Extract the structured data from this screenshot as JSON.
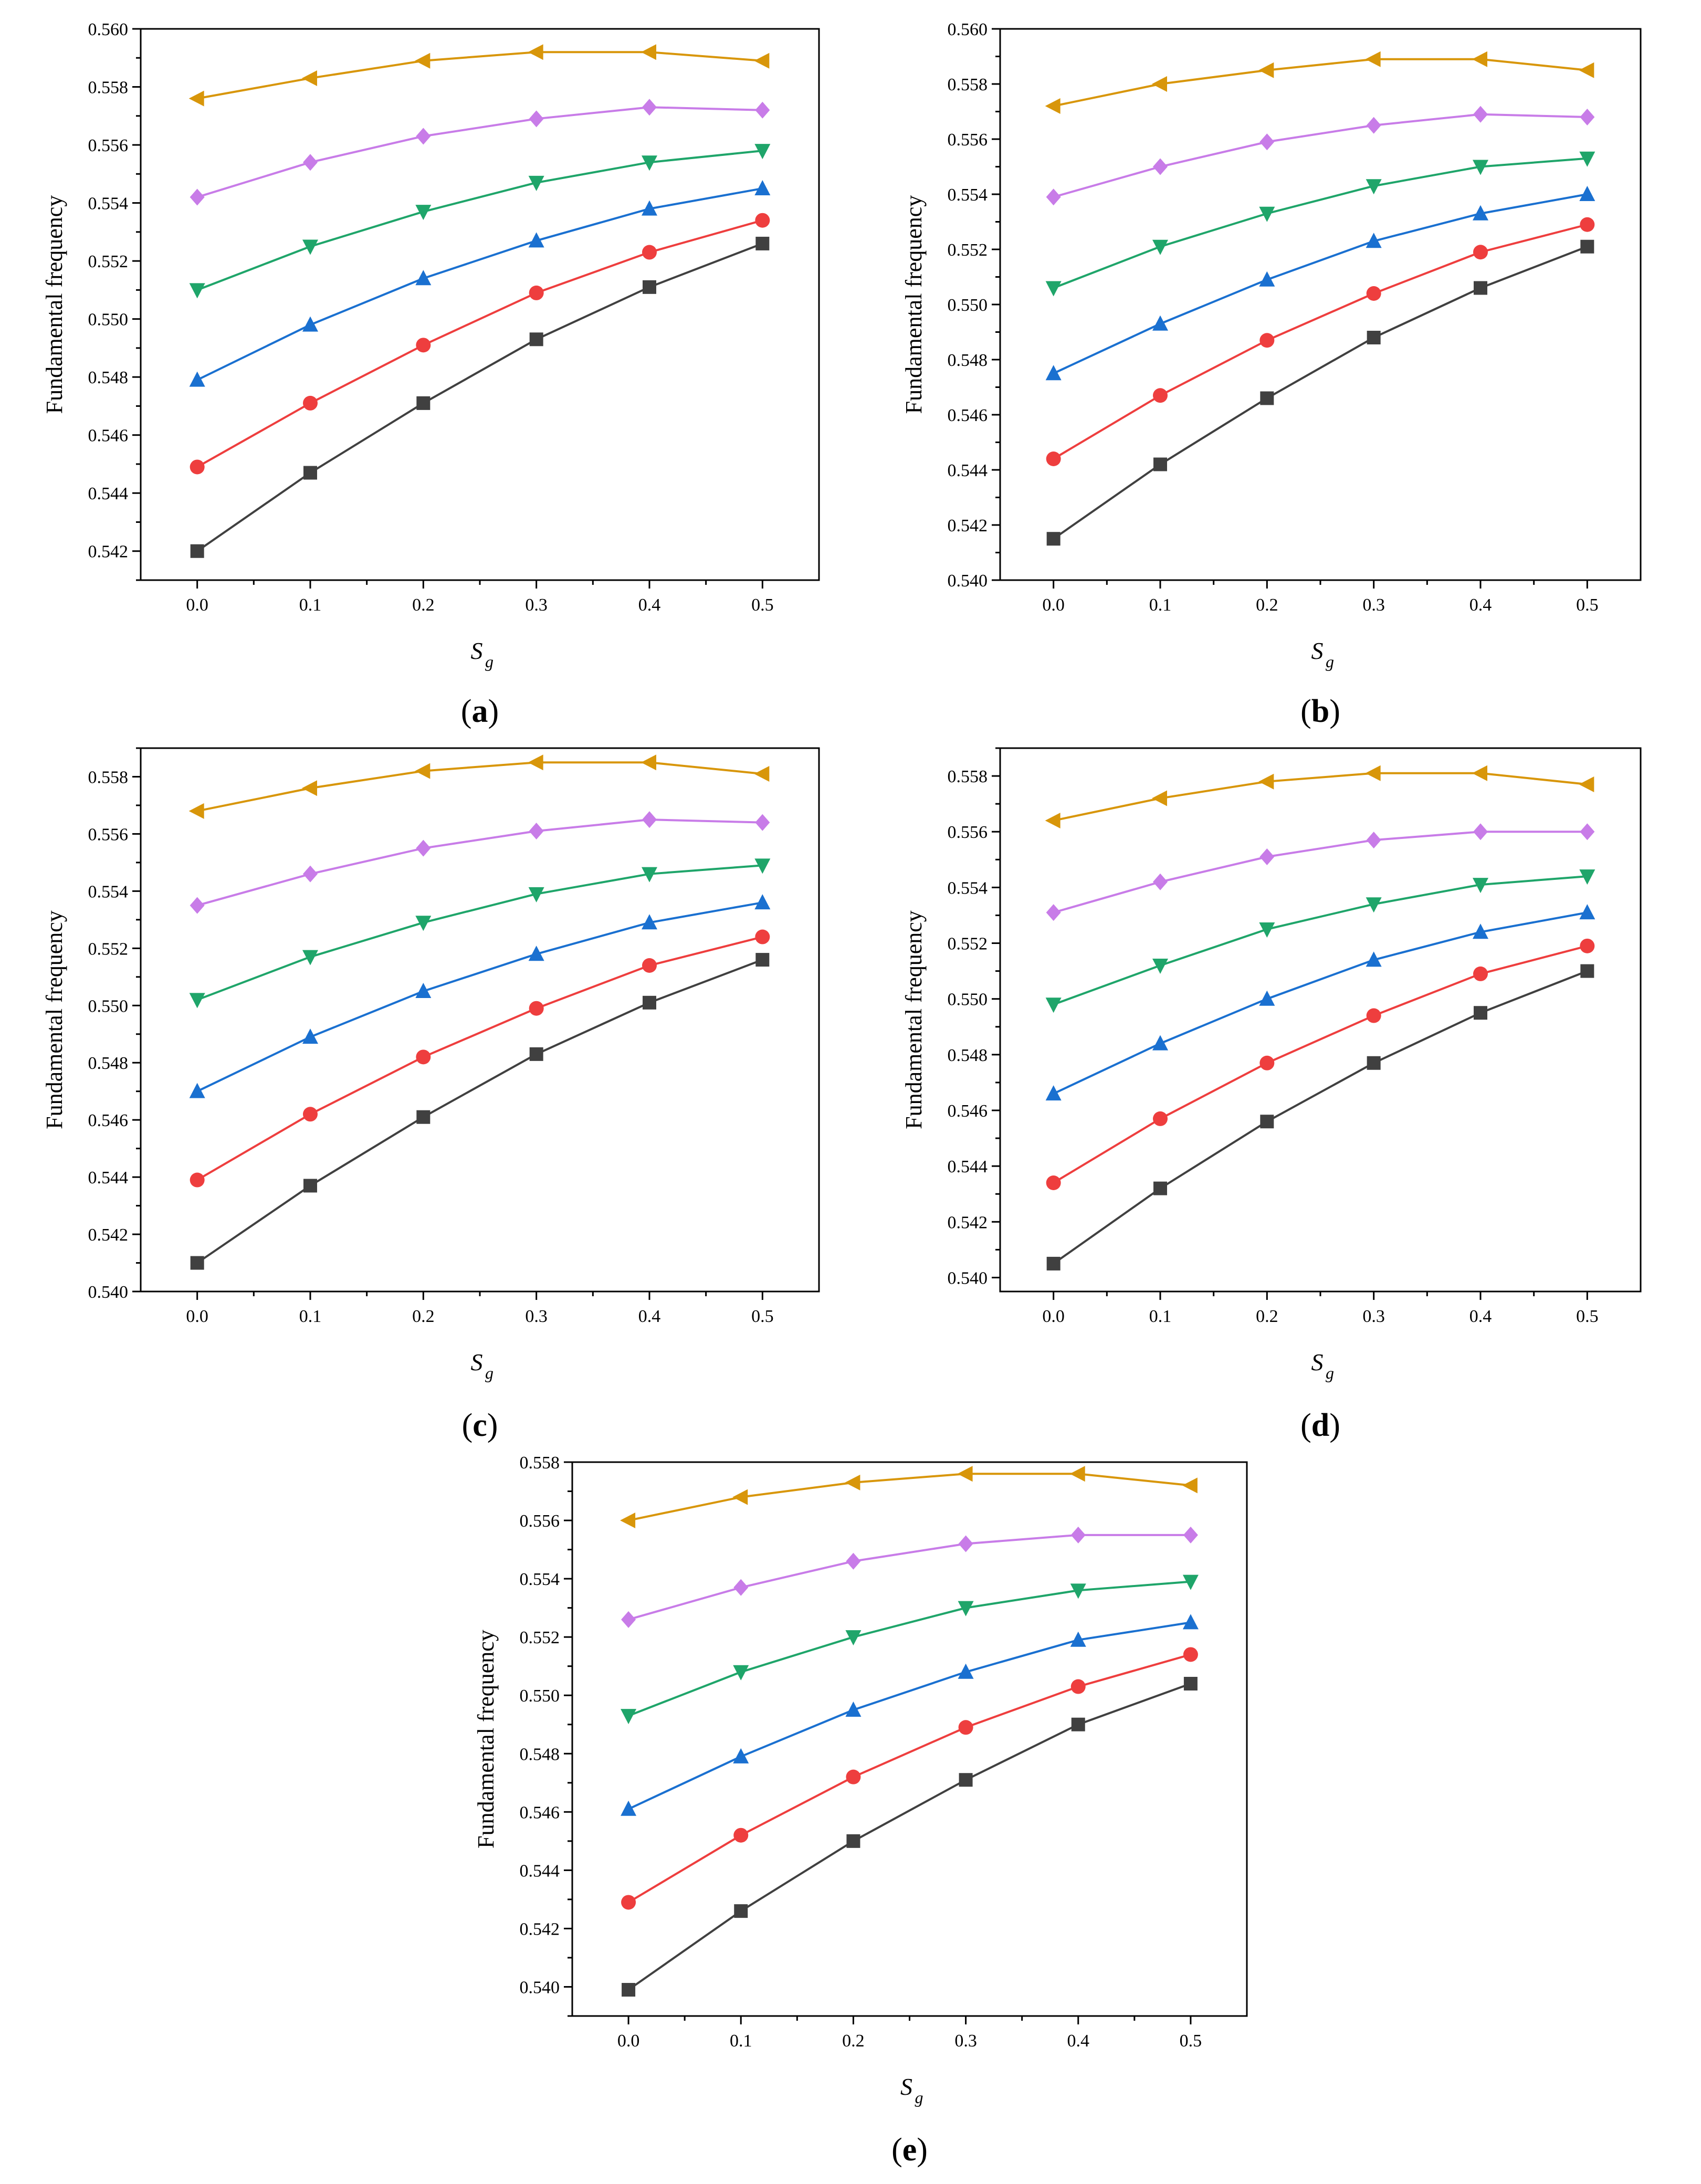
{
  "figure": {
    "ylabel": "Fundamental frequency",
    "xlabel_main": "S",
    "xlabel_sub": "g",
    "x_ticks": [
      "0.0",
      "0.1",
      "0.2",
      "0.3",
      "0.4",
      "0.5"
    ]
  },
  "series_styles": [
    {
      "color": "#404040",
      "marker": "square"
    },
    {
      "color": "#ee3e3e",
      "marker": "circle"
    },
    {
      "color": "#1a70d0",
      "marker": "triangle-up"
    },
    {
      "color": "#1fa56a",
      "marker": "triangle-down"
    },
    {
      "color": "#c87ce8",
      "marker": "diamond"
    },
    {
      "color": "#d8960a",
      "marker": "triangle-left"
    }
  ],
  "chart_data": [
    {
      "type": "line",
      "panel_label": "a",
      "xlabel": "Sg",
      "ylabel": "Fundamental frequency",
      "x": [
        0.0,
        0.1,
        0.2,
        0.3,
        0.4,
        0.5
      ],
      "xlim": [
        -0.05,
        0.55
      ],
      "ylim": [
        0.541,
        0.56
      ],
      "y_ticks": [
        "0.542",
        "0.544",
        "0.546",
        "0.548",
        "0.550",
        "0.552",
        "0.554",
        "0.556",
        "0.558",
        "0.560"
      ],
      "series": [
        {
          "values": [
            0.542,
            0.5447,
            0.5471,
            0.5493,
            0.5511,
            0.5526
          ]
        },
        {
          "values": [
            0.5449,
            0.5471,
            0.5491,
            0.5509,
            0.5523,
            0.5534
          ]
        },
        {
          "values": [
            0.5479,
            0.5498,
            0.5514,
            0.5527,
            0.5538,
            0.5545
          ]
        },
        {
          "values": [
            0.551,
            0.5525,
            0.5537,
            0.5547,
            0.5554,
            0.5558
          ]
        },
        {
          "values": [
            0.5542,
            0.5554,
            0.5563,
            0.5569,
            0.5573,
            0.5572
          ]
        },
        {
          "values": [
            0.5576,
            0.5583,
            0.5589,
            0.5592,
            0.5592,
            0.5589
          ]
        }
      ]
    },
    {
      "type": "line",
      "panel_label": "b",
      "xlabel": "Sg",
      "ylabel": "Fundamental frequency",
      "x": [
        0.0,
        0.1,
        0.2,
        0.3,
        0.4,
        0.5
      ],
      "xlim": [
        -0.05,
        0.55
      ],
      "ylim": [
        0.54,
        0.56
      ],
      "y_ticks": [
        "0.540",
        "0.542",
        "0.544",
        "0.546",
        "0.548",
        "0.550",
        "0.552",
        "0.554",
        "0.556",
        "0.558",
        "0.560"
      ],
      "series": [
        {
          "values": [
            0.5415,
            0.5442,
            0.5466,
            0.5488,
            0.5506,
            0.5521
          ]
        },
        {
          "values": [
            0.5444,
            0.5467,
            0.5487,
            0.5504,
            0.5519,
            0.5529
          ]
        },
        {
          "values": [
            0.5475,
            0.5493,
            0.5509,
            0.5523,
            0.5533,
            0.554
          ]
        },
        {
          "values": [
            0.5506,
            0.5521,
            0.5533,
            0.5543,
            0.555,
            0.5553
          ]
        },
        {
          "values": [
            0.5539,
            0.555,
            0.5559,
            0.5565,
            0.5569,
            0.5568
          ]
        },
        {
          "values": [
            0.5572,
            0.558,
            0.5585,
            0.5589,
            0.5589,
            0.5585
          ]
        }
      ]
    },
    {
      "type": "line",
      "panel_label": "c",
      "xlabel": "Sg",
      "ylabel": "Fundamental frequency",
      "x": [
        0.0,
        0.1,
        0.2,
        0.3,
        0.4,
        0.5
      ],
      "xlim": [
        -0.05,
        0.55
      ],
      "ylim": [
        0.54,
        0.559
      ],
      "y_ticks": [
        "0.540",
        "0.542",
        "0.544",
        "0.546",
        "0.548",
        "0.550",
        "0.552",
        "0.554",
        "0.556",
        "0.558"
      ],
      "series": [
        {
          "values": [
            0.541,
            0.5437,
            0.5461,
            0.5483,
            0.5501,
            0.5516
          ]
        },
        {
          "values": [
            0.5439,
            0.5462,
            0.5482,
            0.5499,
            0.5514,
            0.5524
          ]
        },
        {
          "values": [
            0.547,
            0.5489,
            0.5505,
            0.5518,
            0.5529,
            0.5536
          ]
        },
        {
          "values": [
            0.5502,
            0.5517,
            0.5529,
            0.5539,
            0.5546,
            0.5549
          ]
        },
        {
          "values": [
            0.5535,
            0.5546,
            0.5555,
            0.5561,
            0.5565,
            0.5564
          ]
        },
        {
          "values": [
            0.5568,
            0.5576,
            0.5582,
            0.5585,
            0.5585,
            0.5581
          ]
        }
      ]
    },
    {
      "type": "line",
      "panel_label": "d",
      "xlabel": "Sg",
      "ylabel": "Fundamental frequency",
      "x": [
        0.0,
        0.1,
        0.2,
        0.3,
        0.4,
        0.5
      ],
      "xlim": [
        -0.05,
        0.55
      ],
      "ylim": [
        0.5395,
        0.559
      ],
      "y_ticks": [
        "0.540",
        "0.542",
        "0.544",
        "0.546",
        "0.548",
        "0.550",
        "0.552",
        "0.554",
        "0.556",
        "0.558"
      ],
      "series": [
        {
          "values": [
            0.5405,
            0.5432,
            0.5456,
            0.5477,
            0.5495,
            0.551
          ]
        },
        {
          "values": [
            0.5434,
            0.5457,
            0.5477,
            0.5494,
            0.5509,
            0.5519
          ]
        },
        {
          "values": [
            0.5466,
            0.5484,
            0.55,
            0.5514,
            0.5524,
            0.5531
          ]
        },
        {
          "values": [
            0.5498,
            0.5512,
            0.5525,
            0.5534,
            0.5541,
            0.5544
          ]
        },
        {
          "values": [
            0.5531,
            0.5542,
            0.5551,
            0.5557,
            0.556,
            0.556
          ]
        },
        {
          "values": [
            0.5564,
            0.5572,
            0.5578,
            0.5581,
            0.5581,
            0.5577
          ]
        }
      ]
    },
    {
      "type": "line",
      "panel_label": "e",
      "xlabel": "Sg",
      "ylabel": "Fundamental frequency",
      "x": [
        0.0,
        0.1,
        0.2,
        0.3,
        0.4,
        0.5
      ],
      "xlim": [
        -0.05,
        0.55
      ],
      "ylim": [
        0.539,
        0.558
      ],
      "y_ticks": [
        "0.540",
        "0.542",
        "0.544",
        "0.546",
        "0.548",
        "0.550",
        "0.552",
        "0.554",
        "0.556",
        "0.558"
      ],
      "series": [
        {
          "values": [
            0.5399,
            0.5426,
            0.545,
            0.5471,
            0.549,
            0.5504
          ]
        },
        {
          "values": [
            0.5429,
            0.5452,
            0.5472,
            0.5489,
            0.5503,
            0.5514
          ]
        },
        {
          "values": [
            0.5461,
            0.5479,
            0.5495,
            0.5508,
            0.5519,
            0.5525
          ]
        },
        {
          "values": [
            0.5493,
            0.5508,
            0.552,
            0.553,
            0.5536,
            0.5539
          ]
        },
        {
          "values": [
            0.5526,
            0.5537,
            0.5546,
            0.5552,
            0.5555,
            0.5555
          ]
        },
        {
          "values": [
            0.556,
            0.5568,
            0.5573,
            0.5576,
            0.5576,
            0.5572
          ]
        }
      ]
    }
  ]
}
